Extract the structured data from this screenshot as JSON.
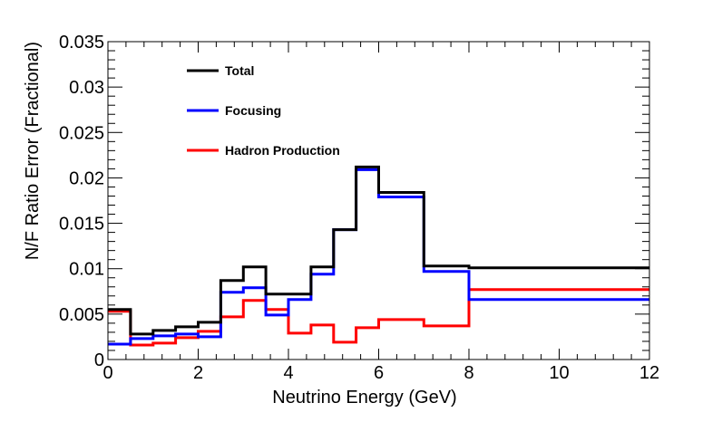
{
  "chart_data": {
    "type": "line",
    "style": "step-histogram",
    "xlabel": "Neutrino Energy (GeV)",
    "ylabel": "N/F Ratio Error (Fractional)",
    "xlim": [
      0,
      12
    ],
    "ylim": [
      0,
      0.035
    ],
    "x_ticks": [
      0,
      2,
      4,
      6,
      8,
      10,
      12
    ],
    "x_tick_labels": [
      "0",
      "2",
      "4",
      "6",
      "8",
      "10",
      "12"
    ],
    "y_ticks": [
      0,
      0.005,
      0.01,
      0.015,
      0.02,
      0.025,
      0.03,
      0.035
    ],
    "y_tick_labels": [
      "0",
      "0.005",
      "0.01",
      "0.015",
      "0.02",
      "0.025",
      "0.03",
      "0.035"
    ],
    "grid": false,
    "legend_position": "top-left",
    "bin_edges": [
      0,
      0.5,
      1,
      1.5,
      2,
      2.5,
      3,
      3.5,
      4,
      4.5,
      5,
      5.5,
      6,
      7,
      8,
      12
    ],
    "series": [
      {
        "name": "Total",
        "color": "#000000",
        "values": [
          0.0055,
          0.0028,
          0.0032,
          0.0036,
          0.0041,
          0.0087,
          0.0102,
          0.0072,
          0.0072,
          0.0102,
          0.0143,
          0.0212,
          0.0184,
          0.0103,
          0.0101
        ]
      },
      {
        "name": "Focusing",
        "color": "#0000ff",
        "values": [
          0.0017,
          0.0023,
          0.0026,
          0.0028,
          0.0025,
          0.0074,
          0.0079,
          0.0049,
          0.0066,
          0.0094,
          0.0143,
          0.0209,
          0.0179,
          0.0097,
          0.0066
        ]
      },
      {
        "name": "Hadron Production",
        "color": "#ff0000",
        "values": [
          0.0053,
          0.0016,
          0.0018,
          0.0024,
          0.0031,
          0.0047,
          0.0065,
          0.0055,
          0.0029,
          0.0038,
          0.0019,
          0.0035,
          0.0044,
          0.0037,
          0.0077
        ]
      }
    ]
  }
}
